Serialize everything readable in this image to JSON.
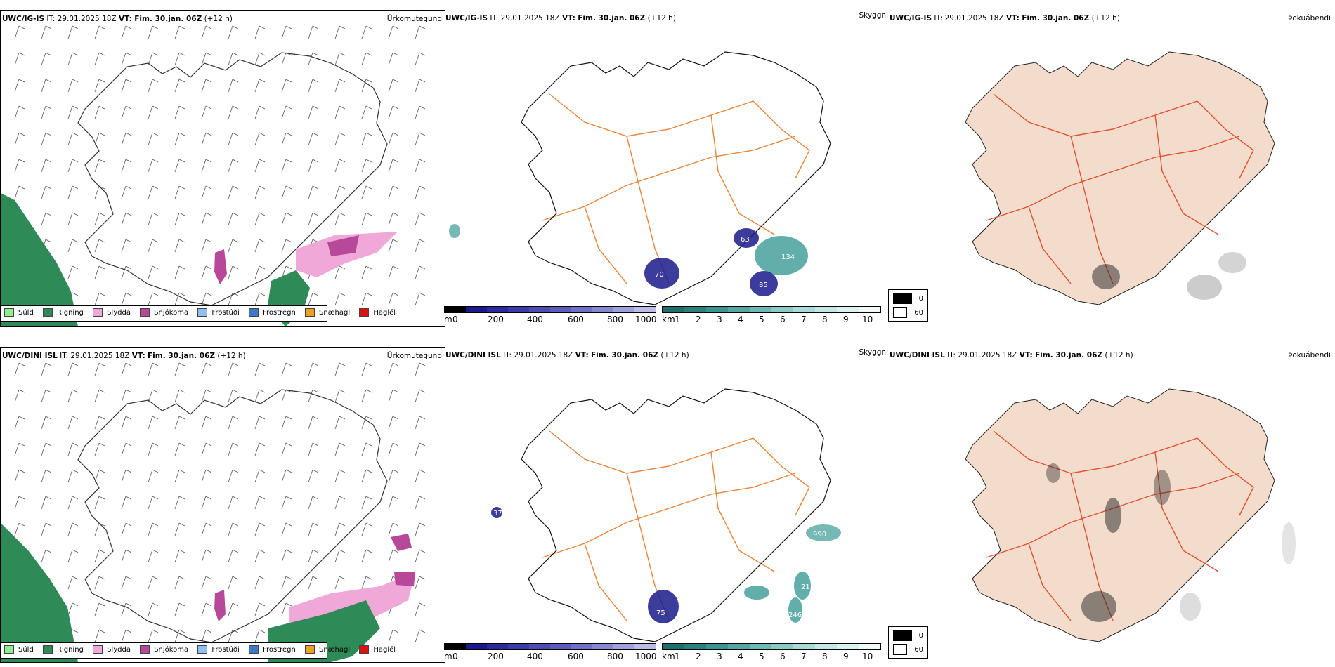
{
  "rows": [
    {
      "id": "top",
      "panels": [
        {
          "model": "UWC/IG-IS",
          "it_label": "IT:",
          "it_value": "29.01.2025 18Z",
          "vt_label": "VT:",
          "vt_value": "Fim. 30.jan. 06Z",
          "lead": "(+12 h)",
          "product": "Úrkomutegund"
        },
        {
          "model": "UWC/IG-IS",
          "it_label": "IT:",
          "it_value": "29.01.2025 18Z",
          "vt_label": "VT:",
          "vt_value": "Fim. 30.jan. 06Z",
          "lead": "(+12 h)",
          "product": "Skyggni"
        },
        {
          "model": "UWC/IG-IS",
          "it_label": "IT:",
          "it_value": "29.01.2025 18Z",
          "vt_label": "VT:",
          "vt_value": "Fim. 30.jan. 06Z",
          "lead": "(+12 h)",
          "product": "Þokuábendi"
        }
      ],
      "visibility_labels": [
        "70",
        "63",
        "134",
        "85"
      ]
    },
    {
      "id": "bottom",
      "panels": [
        {
          "model": "UWC/DINI ISL",
          "it_label": "IT:",
          "it_value": "29.01.2025 18Z",
          "vt_label": "VT:",
          "vt_value": "Fim. 30.jan. 06Z",
          "lead": "(+12 h)",
          "product": "Úrkomutegund"
        },
        {
          "model": "UWC/DINI ISL",
          "it_label": "IT:",
          "it_value": "29.01.2025 18Z",
          "vt_label": "VT:",
          "vt_value": "Fim. 30.jan. 06Z",
          "lead": "(+12 h)",
          "product": "Skyggni"
        },
        {
          "model": "UWC/DINI ISL",
          "it_label": "IT:",
          "it_value": "29.01.2025 18Z",
          "vt_label": "VT:",
          "vt_value": "Fim. 30.jan. 06Z",
          "lead": "(+12 h)",
          "product": "Þokuábendi"
        }
      ],
      "visibility_labels": [
        "37",
        "75",
        "990",
        "21",
        "246"
      ]
    }
  ],
  "precip_legend": [
    {
      "label": "Súld",
      "color": "#90ee90"
    },
    {
      "label": "Rigning",
      "color": "#2e8b57"
    },
    {
      "label": "Slydda",
      "color": "#f0a8d8"
    },
    {
      "label": "Snjókoma",
      "color": "#b8489a"
    },
    {
      "label": "Frostúði",
      "color": "#90c0f0"
    },
    {
      "label": "Frostregn",
      "color": "#3f78c8"
    },
    {
      "label": "Snæhagl",
      "color": "#f0a020"
    },
    {
      "label": "Haglél",
      "color": "#e01010"
    }
  ],
  "height_bar": {
    "unit": "m",
    "ticks": [
      "0",
      "200",
      "400",
      "600",
      "800",
      "1000"
    ]
  },
  "vis_bar": {
    "unit": "km",
    "ticks": [
      "1",
      "2",
      "3",
      "4",
      "5",
      "6",
      "7",
      "8",
      "9",
      "10"
    ]
  },
  "fog_legend": [
    "0",
    "60"
  ],
  "colors": {
    "road": "#e8843a",
    "road_red": "#e05030",
    "fog_land": "#f3dccb",
    "river": "#7a90e8",
    "visibility_dark": "#1a1a8c",
    "visibility_teal": "#3a9a96",
    "rain": "#2e8b57",
    "snow": "#b8489a",
    "sleet": "#f0a8d8"
  }
}
